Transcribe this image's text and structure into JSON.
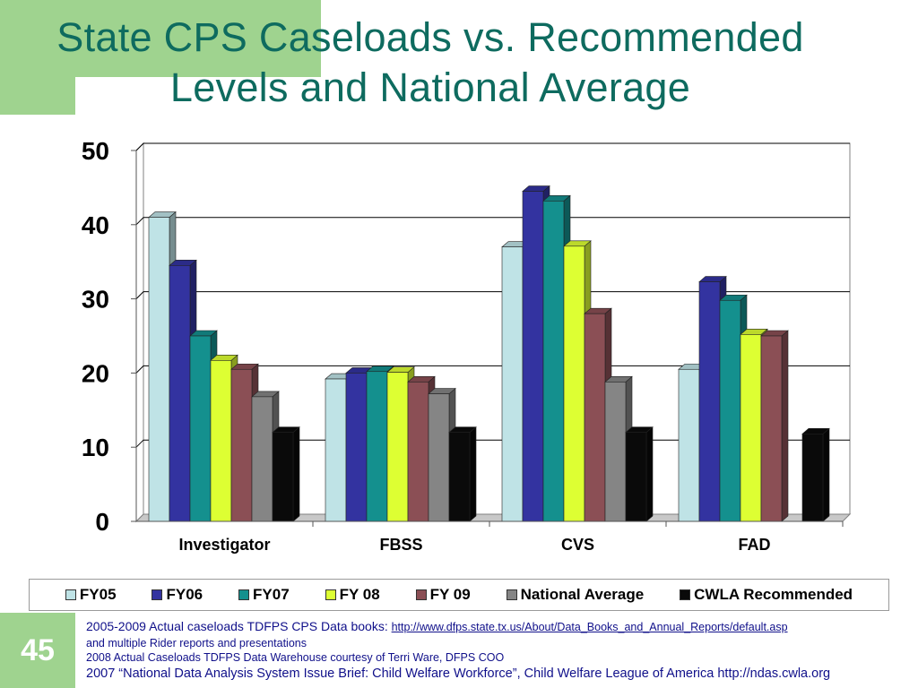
{
  "title": {
    "line1": "State CPS Caseloads vs. Recommended",
    "line2": "Levels and National Average"
  },
  "colors": {
    "accent_green": "#9fd38f",
    "title_teal": "#0e6b5f",
    "source_text": "#10108a"
  },
  "chart_data": {
    "type": "bar",
    "categories": [
      "Investigator",
      "FBSS",
      "CVS",
      "FAD"
    ],
    "series": [
      {
        "name": "FY05",
        "color": "#bfe3e6",
        "values": [
          41,
          19.2,
          37,
          20.5
        ]
      },
      {
        "name": "FY06",
        "color": "#3333a0",
        "values": [
          34.5,
          20,
          44.5,
          32.3
        ]
      },
      {
        "name": "FY07",
        "color": "#14908e",
        "values": [
          25,
          20.2,
          43.2,
          29.8
        ]
      },
      {
        "name": "FY 08",
        "color": "#ddff33",
        "values": [
          21.7,
          20.1,
          37.1,
          25.2
        ]
      },
      {
        "name": "FY 09",
        "color": "#8b4f55",
        "values": [
          20.5,
          18.8,
          28,
          25
        ]
      },
      {
        "name": "National Average",
        "color": "#858585",
        "values": [
          16.8,
          17.2,
          18.8,
          null
        ]
      },
      {
        "name": "CWLA Recommended",
        "color": "#0a0a0a",
        "values": [
          12,
          12,
          12,
          11.8
        ]
      }
    ],
    "ylim": [
      0,
      50
    ],
    "yticks": [
      0,
      10,
      20,
      30,
      40,
      50
    ],
    "grid": true,
    "legend_position": "bottom",
    "style": "3d-clustered-column"
  },
  "slide_number": "45",
  "sources": {
    "line1_text": "2005-2009 Actual caseloads TDFPS CPS Data books: ",
    "line1_link": "http://www.dfps.state.tx.us/About/Data_Books_and_Annual_Reports/default.asp",
    "line2": "and multiple Rider reports and presentations",
    "line3": "2008 Actual Caseloads TDFPS Data Warehouse courtesy of Terri Ware, DFPS COO",
    "line4": "2007 “National Data Analysis System Issue Brief: Child Welfare Workforce”, Child Welfare League of America http://ndas.cwla.org"
  }
}
